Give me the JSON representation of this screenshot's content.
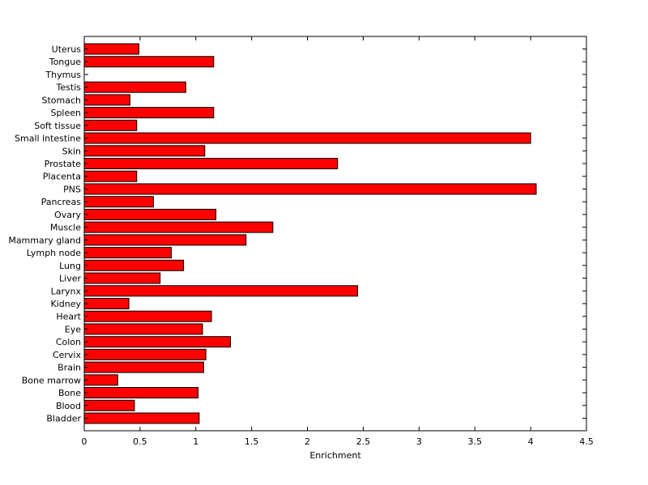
{
  "chart_data": {
    "type": "bar",
    "orientation": "horizontal",
    "title": "",
    "xlabel": "Enrichment",
    "ylabel": "",
    "xlim": [
      0,
      4.5
    ],
    "xticks": [
      "0",
      "0.5",
      "1",
      "1.5",
      "2",
      "2.5",
      "3",
      "3.5",
      "4",
      "4.5"
    ],
    "grid": false,
    "bar_color": "#ff0000",
    "bar_edge_color": "#000000",
    "categories": [
      "Uterus",
      "Tongue",
      "Thymus",
      "Testis",
      "Stomach",
      "Spleen",
      "Soft tissue",
      "Small intestine",
      "Skin",
      "Prostate",
      "Placenta",
      "PNS",
      "Pancreas",
      "Ovary",
      "Muscle",
      "Mammary gland",
      "Lymph node",
      "Lung",
      "Liver",
      "Larynx",
      "Kidney",
      "Heart",
      "Eye",
      "Colon",
      "Cervix",
      "Brain",
      "Bone marrow",
      "Bone",
      "Blood",
      "Bladder"
    ],
    "values": [
      0.49,
      1.16,
      0,
      0.91,
      0.41,
      1.16,
      0.47,
      4.0,
      1.08,
      2.27,
      0.47,
      4.05,
      0.62,
      1.18,
      1.69,
      1.45,
      0.78,
      0.89,
      0.68,
      2.45,
      0.4,
      1.14,
      1.06,
      1.31,
      1.09,
      1.07,
      0.3,
      1.02,
      0.45,
      1.03
    ]
  }
}
